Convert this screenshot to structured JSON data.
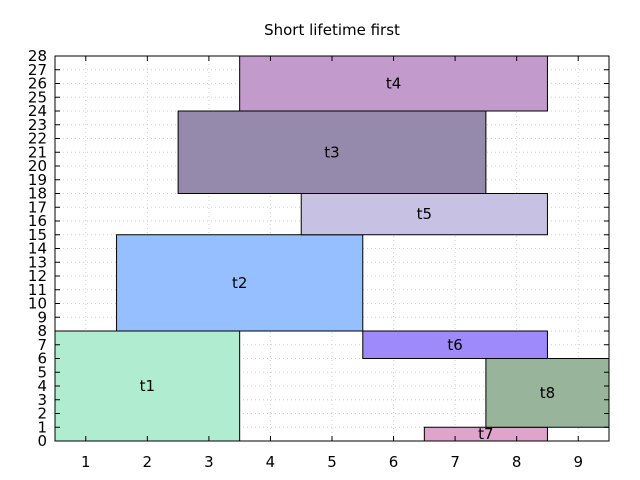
{
  "chart_data": {
    "type": "bar",
    "title": "Short lifetime first",
    "xlabel": "",
    "ylabel": "",
    "xlim": [
      0.5,
      9.5
    ],
    "ylim": [
      0,
      28
    ],
    "x_ticks": [
      "1",
      "2",
      "3",
      "4",
      "5",
      "6",
      "7",
      "8",
      "9"
    ],
    "y_ticks": [
      "0",
      "1",
      "2",
      "3",
      "4",
      "5",
      "6",
      "7",
      "8",
      "9",
      "10",
      "11",
      "12",
      "13",
      "14",
      "15",
      "16",
      "17",
      "18",
      "19",
      "20",
      "21",
      "22",
      "23",
      "24",
      "25",
      "26",
      "27",
      "28"
    ],
    "grid": true,
    "blocks": [
      {
        "label": "t1",
        "x_start": 1,
        "x_end": 3,
        "y_start": 0,
        "y_end": 8,
        "color": "#b0ecd0"
      },
      {
        "label": "t2",
        "x_start": 2,
        "x_end": 5,
        "y_start": 8,
        "y_end": 15,
        "color": "#96bfff"
      },
      {
        "label": "t3",
        "x_start": 3,
        "x_end": 7,
        "y_start": 18,
        "y_end": 24,
        "color": "#958aab"
      },
      {
        "label": "t4",
        "x_start": 4,
        "x_end": 8,
        "y_start": 24,
        "y_end": 28,
        "color": "#c29acb"
      },
      {
        "label": "t5",
        "x_start": 5,
        "x_end": 8,
        "y_start": 15,
        "y_end": 18,
        "color": "#c7c1e3"
      },
      {
        "label": "t6",
        "x_start": 6,
        "x_end": 8,
        "y_start": 6,
        "y_end": 8,
        "color": "#9f8afa"
      },
      {
        "label": "t7",
        "x_start": 7,
        "x_end": 8,
        "y_start": 0,
        "y_end": 1,
        "color": "#dea4cb"
      },
      {
        "label": "t8",
        "x_start": 8,
        "x_end": 9,
        "y_start": 1,
        "y_end": 6,
        "color": "#98b59c"
      }
    ]
  }
}
